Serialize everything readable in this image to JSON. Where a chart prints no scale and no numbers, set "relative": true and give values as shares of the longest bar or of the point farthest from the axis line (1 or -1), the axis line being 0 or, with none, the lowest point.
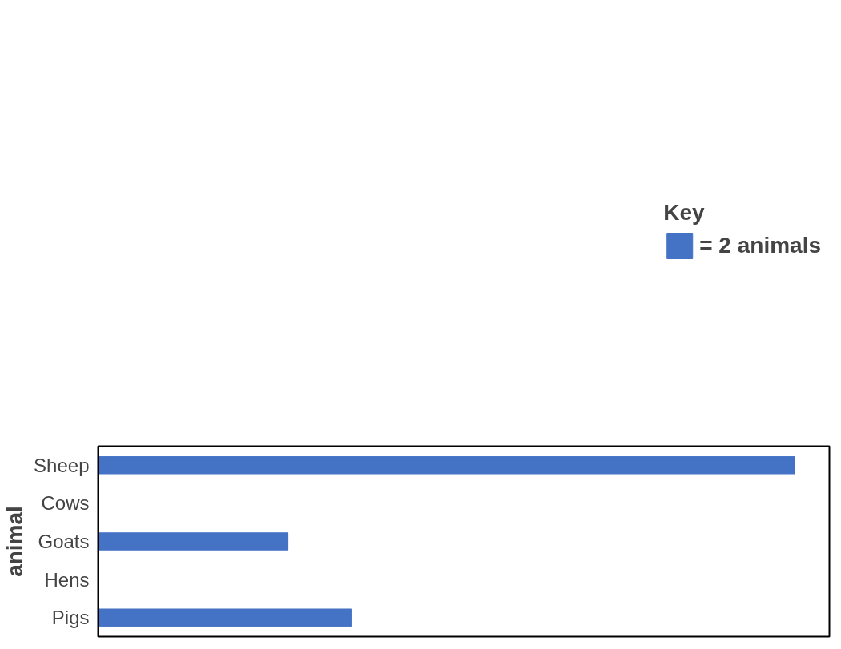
{
  "chart_data": {
    "type": "bar",
    "orientation": "horizontal",
    "relative": true,
    "ylabel": "animal",
    "legend_title": "Key",
    "legend": "top",
    "categories": [
      "Sheep",
      "Cows",
      "Goats",
      "Hens",
      "Pigs"
    ],
    "series": [
      {
        "name": "= 2 animals",
        "color": "#4472c4",
        "values": [
          1,
          0,
          0.2727,
          0,
          0.3636
        ]
      }
    ]
  }
}
